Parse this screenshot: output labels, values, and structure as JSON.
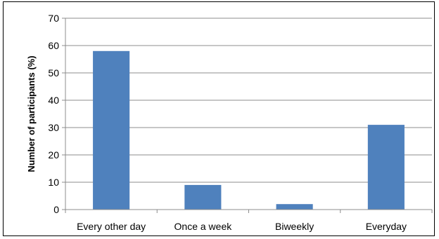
{
  "chart_data": {
    "type": "bar",
    "categories": [
      "Every other day",
      "Once a week",
      "Biweekly",
      "Everyday"
    ],
    "values": [
      58,
      9,
      2,
      31
    ],
    "ylabel": "Number of participants (%)",
    "ylim": [
      0,
      70
    ],
    "yticks": [
      "0",
      "10",
      "20",
      "30",
      "40",
      "50",
      "60",
      "70"
    ],
    "grid": true,
    "bar_color": "#4F81BD",
    "grid_color": "#8C8C8C"
  }
}
